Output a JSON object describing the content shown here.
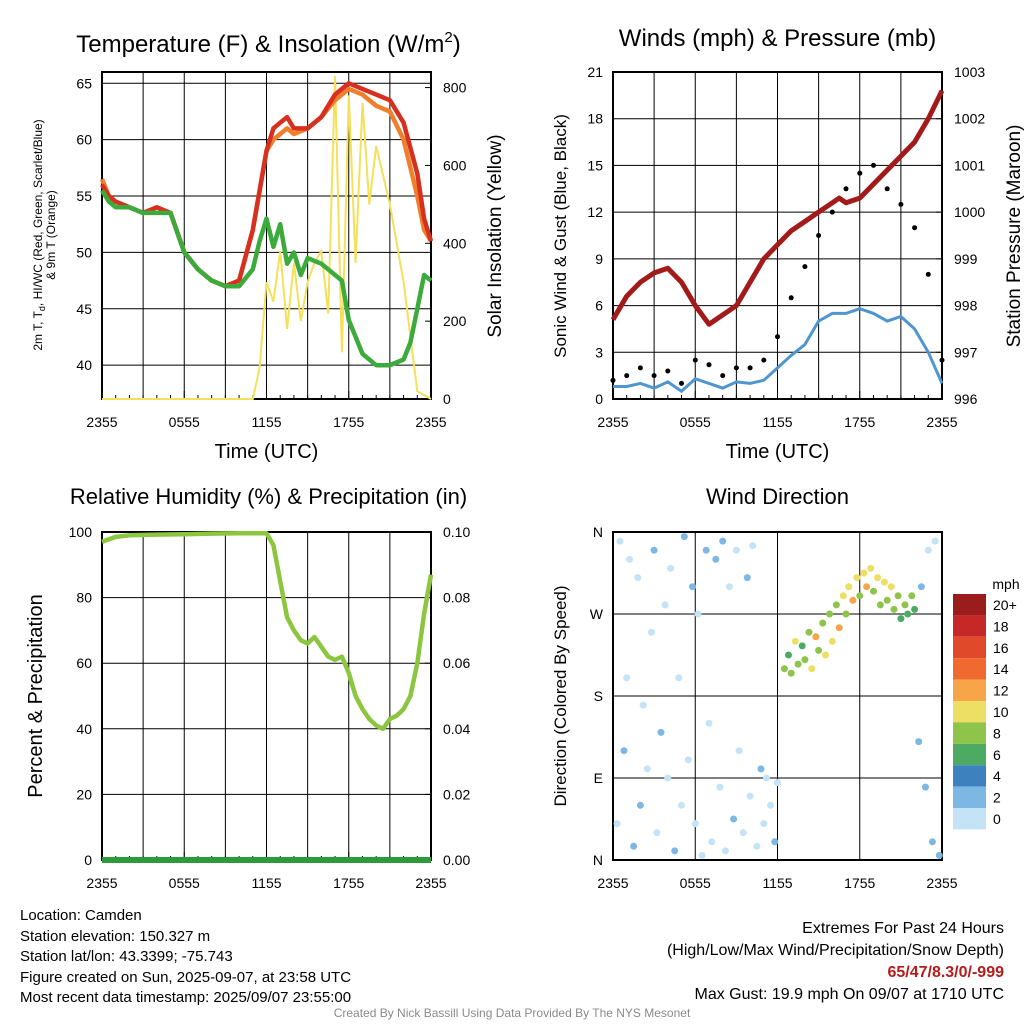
{
  "chart_data": [
    {
      "id": "temp",
      "type": "line",
      "title": "Temperature (F) & Insolation (W/m",
      "title_sup": "2",
      "title_close": ")",
      "xlabel": "Time (UTC)",
      "ylabel_lines": [
        "2m T, T",
        "d",
        ", HI/WC (Red, Green, Scarlet/Blue)",
        "& 9m T (Orange)"
      ],
      "ylabel_right": "Solar Insolation (Yellow)",
      "x_ticks": [
        "2355",
        "0555",
        "1155",
        "1755",
        "2355"
      ],
      "ylim": [
        37,
        66
      ],
      "y_ticks": [
        40,
        45,
        50,
        55,
        60,
        65
      ],
      "ylim_right": [
        0,
        840
      ],
      "y_ticks_right": [
        0,
        200,
        400,
        600,
        800
      ],
      "colors": {
        "t2m": "#d7301f",
        "t9m": "#f07f2c",
        "dew": "#3cab3c",
        "solar": "#f5e05a"
      },
      "series": [
        {
          "key": "t9m",
          "x": [
            0,
            0.5,
            1,
            2,
            3,
            4,
            5,
            6,
            7,
            8,
            9,
            10,
            11,
            12,
            12.5,
            13,
            13.5,
            14,
            15,
            16,
            17,
            17.5,
            18,
            19,
            20,
            21,
            22,
            23,
            23.5,
            24
          ],
          "y": [
            56.5,
            55,
            54.5,
            54,
            53.5,
            54,
            53.5,
            50,
            48.5,
            47.5,
            47,
            47.5,
            52,
            59,
            60,
            60.5,
            61,
            60.5,
            61,
            62,
            63.5,
            64,
            64.5,
            64,
            63,
            62.5,
            60,
            55,
            52,
            51
          ]
        },
        {
          "key": "t2m",
          "x": [
            0,
            0.5,
            1,
            2,
            3,
            4,
            5,
            6,
            7,
            8,
            9,
            10,
            11,
            12,
            12.5,
            13,
            13.5,
            14,
            15,
            16,
            17,
            17.5,
            18,
            19,
            20,
            21,
            22,
            23,
            23.5,
            24
          ],
          "y": [
            56,
            55,
            54.5,
            54,
            53.5,
            54,
            53.5,
            50,
            48.5,
            47.5,
            47,
            47.5,
            52,
            59,
            61,
            61.5,
            62,
            61,
            61,
            62,
            64,
            64.5,
            65,
            64.5,
            64,
            63.5,
            61.5,
            57,
            53,
            51
          ]
        },
        {
          "key": "dew",
          "x": [
            0,
            0.5,
            1,
            2,
            3,
            4,
            5,
            6,
            7,
            8,
            9,
            10,
            11,
            11.5,
            12,
            12.5,
            13,
            13.5,
            14,
            14.5,
            15,
            16,
            17,
            17.5,
            18,
            19,
            20,
            21,
            22,
            22.5,
            23,
            23.5,
            24
          ],
          "y": [
            55.5,
            54.5,
            54,
            54,
            53.5,
            53.5,
            53.5,
            50,
            48.5,
            47.5,
            47,
            47,
            48.5,
            51,
            53,
            50.5,
            52.5,
            49,
            50,
            48,
            49.5,
            49,
            48,
            47.5,
            44,
            41,
            40,
            40,
            40.5,
            42,
            45,
            48,
            47.5
          ]
        },
        {
          "key": "solar",
          "x": [
            0,
            10,
            11,
            11.5,
            12,
            12.5,
            13,
            13.5,
            14,
            14.5,
            15,
            15.5,
            16,
            16.5,
            17,
            17.5,
            18,
            18.5,
            19,
            19.5,
            20,
            21,
            22,
            23,
            24
          ],
          "y": [
            0,
            0,
            0,
            80,
            300,
            250,
            380,
            180,
            350,
            200,
            300,
            350,
            380,
            220,
            830,
            120,
            780,
            350,
            760,
            500,
            650,
            500,
            300,
            20,
            0
          ]
        }
      ]
    },
    {
      "id": "wind",
      "type": "line",
      "title": "Winds (mph) & Pressure (mb)",
      "xlabel": "Time (UTC)",
      "ylabel": "Sonic Wind & Gust (Blue, Black)",
      "ylabel_right": "Station Pressure (Maroon)",
      "x_ticks": [
        "2355",
        "0555",
        "1155",
        "1755",
        "2355"
      ],
      "ylim": [
        0,
        21
      ],
      "y_ticks": [
        0,
        3,
        6,
        9,
        12,
        15,
        18,
        21
      ],
      "ylim_right": [
        996,
        1003
      ],
      "y_ticks_right": [
        996,
        997,
        998,
        999,
        1000,
        1001,
        1002,
        1003
      ],
      "colors": {
        "wind": "#4f95cf",
        "gust": "#000000",
        "pressure": "#a31a1a"
      },
      "series": [
        {
          "key": "pressure",
          "x": [
            0,
            1,
            2,
            3,
            4,
            5,
            6,
            7,
            8,
            9,
            10,
            11,
            12,
            13,
            14,
            15,
            16,
            16.5,
            17,
            18,
            19,
            20,
            21,
            22,
            23,
            24
          ],
          "y": [
            997.7,
            998.2,
            998.5,
            998.7,
            998.8,
            998.5,
            998.0,
            997.6,
            997.8,
            998.0,
            998.5,
            999.0,
            999.3,
            999.6,
            999.8,
            1000.0,
            1000.2,
            1000.3,
            1000.2,
            1000.3,
            1000.6,
            1000.9,
            1001.2,
            1001.5,
            1002.0,
            1002.6
          ]
        },
        {
          "key": "wind",
          "x": [
            0,
            1,
            2,
            3,
            4,
            5,
            6,
            7,
            8,
            9,
            10,
            11,
            12,
            13,
            14,
            15,
            16,
            17,
            18,
            19,
            20,
            21,
            22,
            23,
            24
          ],
          "y": [
            0.8,
            0.8,
            1.0,
            0.7,
            1.1,
            0.5,
            1.3,
            1.0,
            0.7,
            1.1,
            1.0,
            1.2,
            2.0,
            2.8,
            3.5,
            5.0,
            5.5,
            5.5,
            5.8,
            5.5,
            5.0,
            5.3,
            4.5,
            3.0,
            1.0
          ]
        },
        {
          "key": "gust",
          "x": [
            0,
            1,
            2,
            3,
            4,
            5,
            6,
            7,
            8,
            9,
            10,
            11,
            12,
            13,
            14,
            15,
            16,
            17,
            18,
            19,
            20,
            21,
            22,
            23,
            24
          ],
          "y": [
            1.2,
            1.5,
            2.0,
            1.5,
            1.8,
            1.0,
            2.5,
            2.2,
            1.5,
            2.0,
            2.0,
            2.5,
            4.0,
            6.5,
            8.5,
            10.5,
            12.0,
            13.5,
            14.5,
            15.0,
            13.5,
            12.5,
            11.0,
            8.0,
            2.5
          ]
        }
      ]
    },
    {
      "id": "rh",
      "type": "line",
      "title": "Relative Humidity (%) & Precipitation (in)",
      "ylabel": "Percent & Precipitation",
      "x_ticks": [
        "2355",
        "0555",
        "1155",
        "1755",
        "2355"
      ],
      "ylim": [
        0,
        100
      ],
      "y_ticks": [
        0,
        20,
        40,
        60,
        80,
        100
      ],
      "ylim_right": [
        0,
        0.1
      ],
      "y_ticks_right": [
        "0.00",
        "0.02",
        "0.04",
        "0.06",
        "0.08",
        "0.10"
      ],
      "colors": {
        "rh": "#8cc63f",
        "precip": "#2e9a3c"
      },
      "series": [
        {
          "key": "rh",
          "x": [
            0,
            1,
            2,
            4,
            6,
            8,
            10,
            12,
            12.5,
            13,
            13.5,
            14,
            14.5,
            15,
            15.5,
            16,
            16.5,
            17,
            17.5,
            18,
            18.5,
            19,
            19.5,
            20,
            20.5,
            21,
            21.5,
            22,
            22.5,
            23,
            23.5,
            24
          ],
          "y": [
            97,
            98.5,
            99,
            99.2,
            99.3,
            99.5,
            99.6,
            99.6,
            96,
            85,
            74,
            70,
            67,
            66,
            68,
            65,
            62,
            61,
            62,
            57,
            50,
            46,
            43,
            41,
            40,
            43,
            44,
            46,
            50,
            60,
            75,
            87
          ]
        },
        {
          "key": "precip",
          "x": [
            0,
            24
          ],
          "y": [
            0,
            0
          ]
        }
      ]
    },
    {
      "id": "dir",
      "type": "scatter",
      "title": "Wind Direction",
      "ylabel": "Direction (Colored By Speed)",
      "x_ticks": [
        "2355",
        "0555",
        "1155",
        "1755",
        "2355"
      ],
      "y_ticks": [
        "N",
        "E",
        "S",
        "W",
        "N"
      ],
      "ylim": [
        0,
        360
      ],
      "legend_title": "mph",
      "legend_labels": [
        "20+",
        "18",
        "16",
        "14",
        "12",
        "10",
        "8",
        "6",
        "4",
        "2",
        "0"
      ],
      "legend_colors": [
        "#9b1c1c",
        "#c62828",
        "#e04a2a",
        "#f06a2f",
        "#f8a54a",
        "#ecdf63",
        "#8ec44a",
        "#4daa63",
        "#3d82bf",
        "#7db8e5",
        "#c4e3f7"
      ],
      "points": [
        {
          "x": 0.3,
          "y": 40,
          "s": 0
        },
        {
          "x": 0.5,
          "y": 350,
          "s": 0
        },
        {
          "x": 0.8,
          "y": 120,
          "s": 1
        },
        {
          "x": 1.0,
          "y": 200,
          "s": 0
        },
        {
          "x": 1.2,
          "y": 330,
          "s": 0
        },
        {
          "x": 1.5,
          "y": 15,
          "s": 1
        },
        {
          "x": 1.8,
          "y": 310,
          "s": 0
        },
        {
          "x": 2.0,
          "y": 60,
          "s": 1
        },
        {
          "x": 2.2,
          "y": 170,
          "s": 0
        },
        {
          "x": 2.5,
          "y": 100,
          "s": 0
        },
        {
          "x": 2.8,
          "y": 250,
          "s": 0
        },
        {
          "x": 3.0,
          "y": 340,
          "s": 1
        },
        {
          "x": 3.2,
          "y": 30,
          "s": 0
        },
        {
          "x": 3.5,
          "y": 140,
          "s": 1
        },
        {
          "x": 3.8,
          "y": 280,
          "s": 0
        },
        {
          "x": 4.0,
          "y": 90,
          "s": 0
        },
        {
          "x": 4.2,
          "y": 320,
          "s": 0
        },
        {
          "x": 4.5,
          "y": 10,
          "s": 1
        },
        {
          "x": 4.8,
          "y": 200,
          "s": 0
        },
        {
          "x": 5.0,
          "y": 60,
          "s": 0
        },
        {
          "x": 5.2,
          "y": 355,
          "s": 1
        },
        {
          "x": 5.5,
          "y": 110,
          "s": 0
        },
        {
          "x": 5.8,
          "y": 300,
          "s": 1
        },
        {
          "x": 6.0,
          "y": 40,
          "s": 0
        },
        {
          "x": 6.2,
          "y": 270,
          "s": 0
        },
        {
          "x": 6.5,
          "y": 5,
          "s": 0
        },
        {
          "x": 6.8,
          "y": 340,
          "s": 1
        },
        {
          "x": 7.0,
          "y": 150,
          "s": 0
        },
        {
          "x": 7.2,
          "y": 20,
          "s": 0
        },
        {
          "x": 7.5,
          "y": 330,
          "s": 1
        },
        {
          "x": 7.8,
          "y": 80,
          "s": 0
        },
        {
          "x": 8.0,
          "y": 350,
          "s": 1
        },
        {
          "x": 8.2,
          "y": 10,
          "s": 0
        },
        {
          "x": 8.5,
          "y": 300,
          "s": 0
        },
        {
          "x": 8.8,
          "y": 45,
          "s": 1
        },
        {
          "x": 9.0,
          "y": 340,
          "s": 0
        },
        {
          "x": 9.2,
          "y": 120,
          "s": 0
        },
        {
          "x": 9.5,
          "y": 30,
          "s": 0
        },
        {
          "x": 9.8,
          "y": 310,
          "s": 1
        },
        {
          "x": 10.0,
          "y": 70,
          "s": 0
        },
        {
          "x": 10.2,
          "y": 345,
          "s": 0
        },
        {
          "x": 10.5,
          "y": 15,
          "s": 0
        },
        {
          "x": 10.8,
          "y": 100,
          "s": 1
        },
        {
          "x": 11.0,
          "y": 40,
          "s": 0
        },
        {
          "x": 11.2,
          "y": 90,
          "s": 0
        },
        {
          "x": 11.5,
          "y": 60,
          "s": 0
        },
        {
          "x": 11.8,
          "y": 20,
          "s": 1
        },
        {
          "x": 12.0,
          "y": 85,
          "s": 0
        },
        {
          "x": 12.5,
          "y": 210,
          "s": 4
        },
        {
          "x": 12.8,
          "y": 225,
          "s": 3
        },
        {
          "x": 13.0,
          "y": 205,
          "s": 4
        },
        {
          "x": 13.3,
          "y": 240,
          "s": 5
        },
        {
          "x": 13.5,
          "y": 215,
          "s": 4
        },
        {
          "x": 13.8,
          "y": 235,
          "s": 3
        },
        {
          "x": 14.0,
          "y": 220,
          "s": 4
        },
        {
          "x": 14.3,
          "y": 250,
          "s": 4
        },
        {
          "x": 14.5,
          "y": 210,
          "s": 5
        },
        {
          "x": 14.8,
          "y": 245,
          "s": 6
        },
        {
          "x": 15.0,
          "y": 230,
          "s": 4
        },
        {
          "x": 15.3,
          "y": 260,
          "s": 4
        },
        {
          "x": 15.5,
          "y": 225,
          "s": 5
        },
        {
          "x": 15.8,
          "y": 270,
          "s": 4
        },
        {
          "x": 16.0,
          "y": 240,
          "s": 5
        },
        {
          "x": 16.3,
          "y": 280,
          "s": 4
        },
        {
          "x": 16.5,
          "y": 255,
          "s": 6
        },
        {
          "x": 16.8,
          "y": 290,
          "s": 5
        },
        {
          "x": 17.0,
          "y": 270,
          "s": 4
        },
        {
          "x": 17.2,
          "y": 300,
          "s": 5
        },
        {
          "x": 17.5,
          "y": 285,
          "s": 6
        },
        {
          "x": 17.8,
          "y": 310,
          "s": 5
        },
        {
          "x": 18.0,
          "y": 290,
          "s": 4
        },
        {
          "x": 18.3,
          "y": 315,
          "s": 5
        },
        {
          "x": 18.5,
          "y": 300,
          "s": 6
        },
        {
          "x": 18.8,
          "y": 320,
          "s": 5
        },
        {
          "x": 19.0,
          "y": 295,
          "s": 4
        },
        {
          "x": 19.3,
          "y": 310,
          "s": 5
        },
        {
          "x": 19.5,
          "y": 280,
          "s": 4
        },
        {
          "x": 19.8,
          "y": 305,
          "s": 5
        },
        {
          "x": 20.0,
          "y": 285,
          "s": 4
        },
        {
          "x": 20.3,
          "y": 300,
          "s": 5
        },
        {
          "x": 20.5,
          "y": 275,
          "s": 4
        },
        {
          "x": 20.8,
          "y": 290,
          "s": 4
        },
        {
          "x": 21.0,
          "y": 265,
          "s": 3
        },
        {
          "x": 21.3,
          "y": 280,
          "s": 4
        },
        {
          "x": 21.5,
          "y": 270,
          "s": 3
        },
        {
          "x": 21.8,
          "y": 290,
          "s": 4
        },
        {
          "x": 22.0,
          "y": 275,
          "s": 3
        },
        {
          "x": 22.3,
          "y": 130,
          "s": 1
        },
        {
          "x": 22.5,
          "y": 300,
          "s": 1
        },
        {
          "x": 22.8,
          "y": 80,
          "s": 1
        },
        {
          "x": 23.0,
          "y": 340,
          "s": 0
        },
        {
          "x": 23.3,
          "y": 20,
          "s": 1
        },
        {
          "x": 23.5,
          "y": 350,
          "s": 0
        },
        {
          "x": 23.8,
          "y": 5,
          "s": 1
        }
      ]
    }
  ],
  "footer": {
    "location": "Location: Camden",
    "elevation": "Station elevation: 150.327 m",
    "latlon": "Station lat/lon: 43.3399; -75.743",
    "created": "Figure created on Sun, 2025-09-07, at 23:58 UTC",
    "recent": "Most recent data timestamp: 2025/09/07 23:55:00",
    "extremes_title": "Extremes For Past 24 Hours",
    "extremes_sub": "(High/Low/Max Wind/Precipitation/Snow Depth)",
    "extremes_values": "65/47/8.3/0/-999",
    "max_gust": "Max Gust: 19.9 mph On 09/07 at 1710 UTC",
    "credit": "Created By Nick Bassill Using Data Provided By The NYS Mesonet"
  }
}
